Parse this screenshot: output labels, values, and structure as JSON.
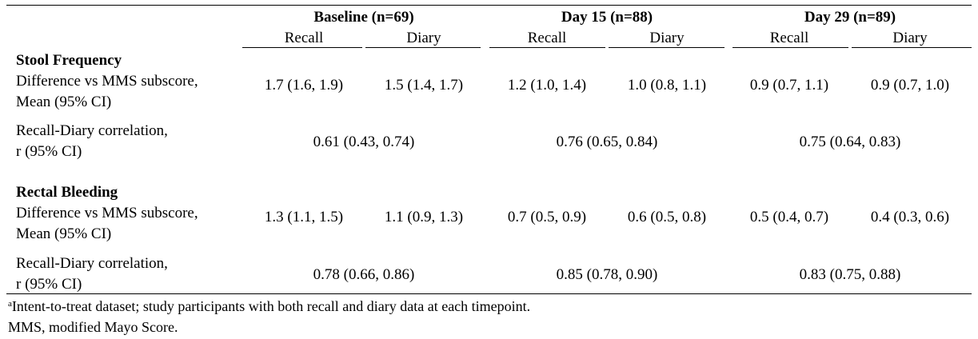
{
  "header": {
    "groups": [
      {
        "label": "Baseline (n=69)",
        "sub": [
          "Recall",
          "Diary"
        ]
      },
      {
        "label": "Day 15 (n=88)",
        "sub": [
          "Recall",
          "Diary"
        ]
      },
      {
        "label": "Day 29 (n=89)",
        "sub": [
          "Recall",
          "Diary"
        ]
      }
    ]
  },
  "sections": [
    {
      "title": "Stool Frequency",
      "diff_label": [
        "Difference vs MMS subscore,",
        "Mean (95% CI)"
      ],
      "diff_values": [
        "1.7 (1.6, 1.9)",
        "1.5 (1.4, 1.7)",
        "1.2 (1.0, 1.4)",
        "1.0 (0.8, 1.1)",
        "0.9 (0.7, 1.1)",
        "0.9 (0.7, 1.0)"
      ],
      "corr_label": [
        "Recall-Diary correlation,",
        "r (95% CI)"
      ],
      "corr_values": [
        "0.61 (0.43, 0.74)",
        "0.76 (0.65, 0.84)",
        "0.75 (0.64, 0.83)"
      ]
    },
    {
      "title": "Rectal Bleeding",
      "diff_label": [
        "Difference vs MMS subscore,",
        "Mean (95% CI)"
      ],
      "diff_values": [
        "1.3 (1.1, 1.5)",
        "1.1 (0.9, 1.3)",
        "0.7 (0.5, 0.9)",
        "0.6 (0.5, 0.8)",
        "0.5 (0.4, 0.7)",
        "0.4 (0.3, 0.6)"
      ],
      "corr_label": [
        "Recall-Diary correlation,",
        "r (95% CI)"
      ],
      "corr_values": [
        "0.78 (0.66, 0.86)",
        "0.85 (0.78, 0.90)",
        "0.83 (0.75, 0.88)"
      ]
    }
  ],
  "footnotes": {
    "a_marker": "a",
    "a_text": "Intent-to-treat dataset; study participants with both recall and diary data at each timepoint.",
    "mms": "MMS, modified Mayo Score."
  }
}
